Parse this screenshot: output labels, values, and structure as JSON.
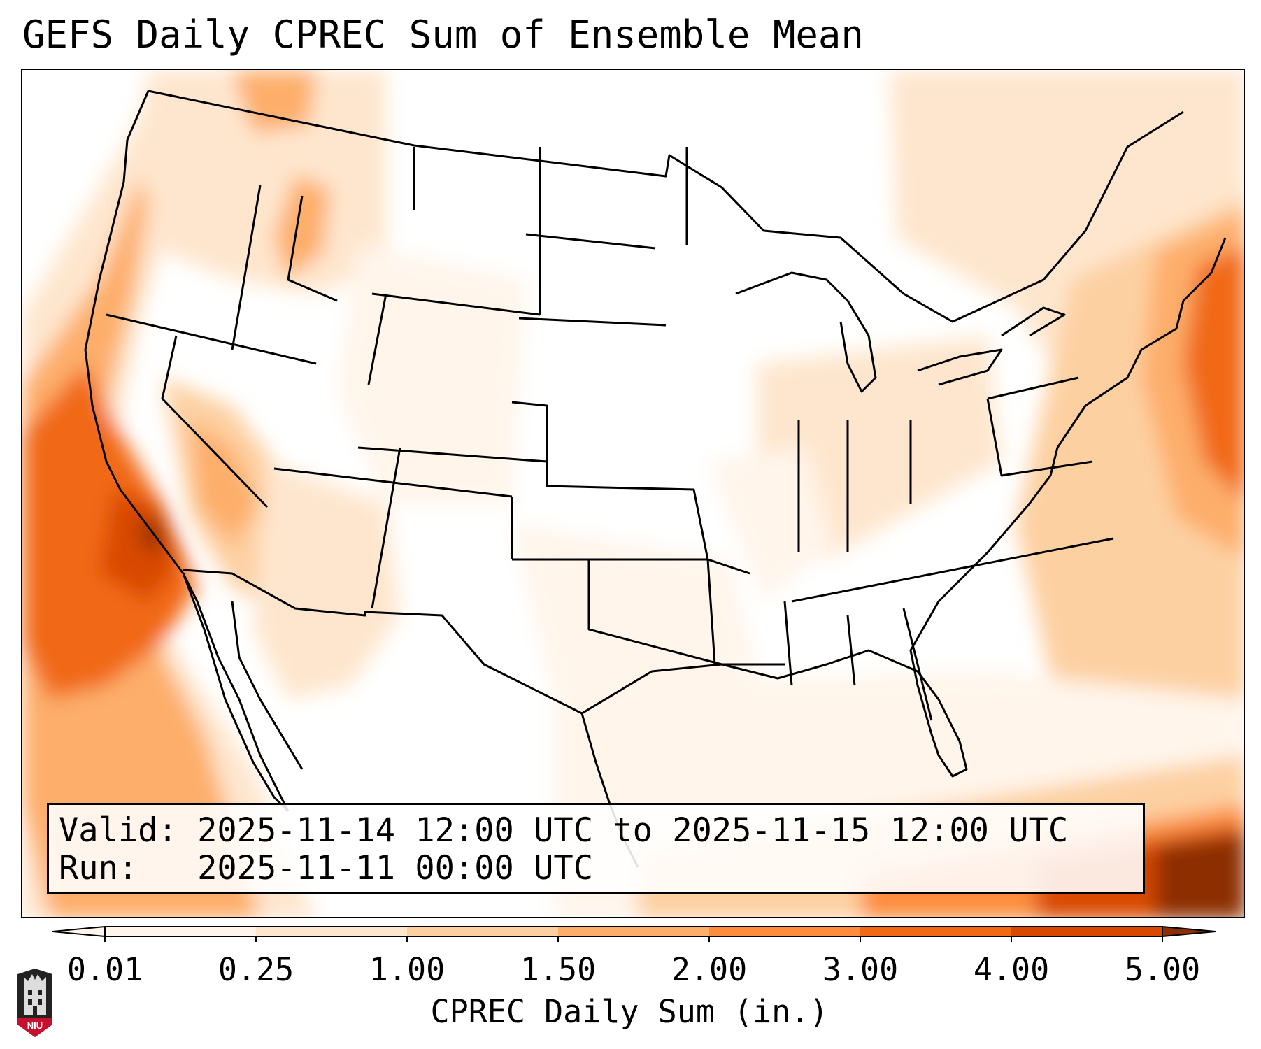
{
  "title": "GEFS Daily CPREC Sum of Ensemble Mean",
  "info": {
    "valid_line": "Valid: 2025-11-14 12:00 UTC to 2025-11-15 12:00 UTC",
    "run_line": "Run:   2025-11-11 00:00 UTC"
  },
  "colorbar": {
    "label": "CPREC Daily Sum (in.)",
    "ticks": [
      "0.01",
      "0.25",
      "1.00",
      "1.50",
      "2.00",
      "3.00",
      "4.00",
      "5.00"
    ],
    "colors": [
      "#fff5eb",
      "#fee6ce",
      "#fdd0a2",
      "#fdae6b",
      "#fd8d3c",
      "#f16913",
      "#d94801",
      "#8c2d04"
    ]
  },
  "logo": {
    "text": "NIU",
    "color": "#c8102e"
  }
}
